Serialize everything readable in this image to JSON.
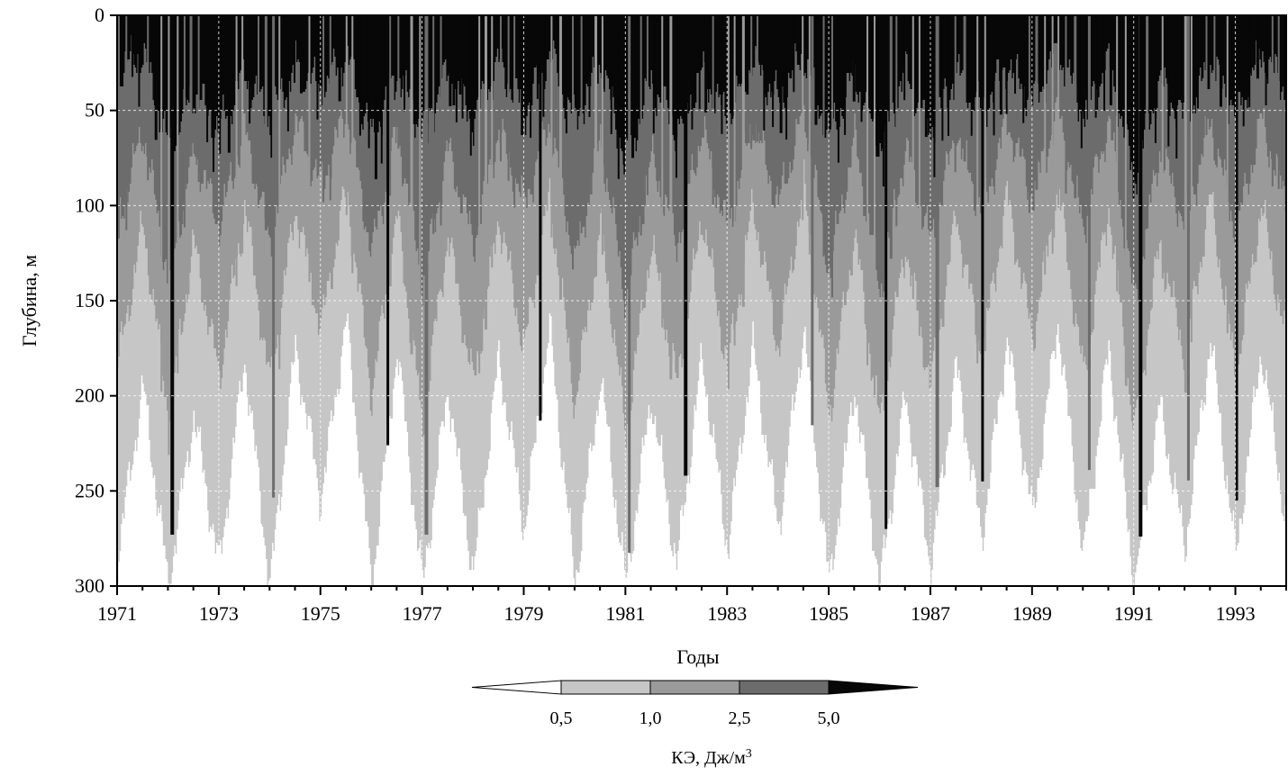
{
  "chart_data": {
    "type": "heatmap",
    "title": "",
    "xlabel": "Годы",
    "ylabel": "Глубина, м",
    "xlim": [
      1971,
      1994
    ],
    "ylim": [
      300,
      0
    ],
    "x_ticks": [
      1971,
      1973,
      1975,
      1977,
      1979,
      1981,
      1983,
      1985,
      1987,
      1989,
      1991,
      1993
    ],
    "y_ticks": [
      0,
      50,
      100,
      150,
      200,
      250,
      300
    ],
    "y_tick_labels": [
      "0",
      "50",
      "100",
      "150",
      "200",
      "250",
      "300"
    ],
    "grid": true,
    "colorbar": {
      "title_main": "КЭ, Дж/м",
      "title_sup": "3",
      "levels": [
        0.5,
        1.0,
        2.5,
        5.0
      ],
      "labels": [
        "0,5",
        "1,0",
        "2,5",
        "5,0"
      ],
      "colors": [
        "#ffffff",
        "#c6c6c6",
        "#9a9a9a",
        "#6c6c6c",
        "#070707"
      ],
      "extend": "both",
      "placement": "bottom-center"
    },
    "contour_depths": {
      "x_years": [
        1971.0,
        1971.5,
        1972.0,
        1972.5,
        1973.0,
        1973.5,
        1974.0,
        1974.5,
        1975.0,
        1975.5,
        1976.0,
        1976.5,
        1977.0,
        1977.5,
        1978.0,
        1978.5,
        1979.0,
        1979.5,
        1980.0,
        1980.5,
        1981.0,
        1981.5,
        1982.0,
        1982.5,
        1983.0,
        1983.5,
        1984.0,
        1984.5,
        1985.0,
        1985.5,
        1986.0,
        1986.5,
        1987.0,
        1987.5,
        1988.0,
        1988.5,
        1989.0,
        1989.5,
        1990.0,
        1990.5,
        1991.0,
        1991.5,
        1992.0,
        1992.5,
        1993.0,
        1993.5,
        1994.0
      ],
      "depth_5_0": [
        30,
        20,
        70,
        40,
        60,
        30,
        55,
        25,
        40,
        20,
        65,
        30,
        60,
        30,
        55,
        25,
        50,
        20,
        55,
        25,
        75,
        35,
        60,
        30,
        55,
        25,
        45,
        20,
        65,
        30,
        70,
        30,
        60,
        30,
        50,
        25,
        45,
        20,
        50,
        25,
        85,
        35,
        55,
        25,
        50,
        20,
        40
      ],
      "depth_2_5": [
        110,
        60,
        140,
        70,
        110,
        60,
        120,
        55,
        90,
        50,
        125,
        60,
        140,
        70,
        120,
        60,
        100,
        55,
        130,
        65,
        150,
        75,
        120,
        60,
        115,
        55,
        100,
        50,
        135,
        65,
        145,
        70,
        120,
        60,
        105,
        55,
        95,
        50,
        110,
        55,
        150,
        70,
        110,
        55,
        115,
        55,
        100
      ],
      "depth_1_0": [
        185,
        110,
        210,
        120,
        190,
        100,
        195,
        100,
        165,
        90,
        200,
        105,
        215,
        115,
        195,
        105,
        175,
        95,
        205,
        110,
        220,
        120,
        195,
        105,
        185,
        100,
        175,
        90,
        210,
        115,
        215,
        120,
        195,
        105,
        180,
        95,
        170,
        90,
        190,
        100,
        220,
        120,
        180,
        95,
        190,
        100,
        175
      ],
      "depth_0_5": [
        285,
        195,
        300,
        210,
        290,
        180,
        300,
        175,
        255,
        160,
        300,
        175,
        300,
        195,
        295,
        180,
        270,
        165,
        300,
        190,
        300,
        200,
        290,
        180,
        280,
        175,
        270,
        165,
        300,
        195,
        300,
        200,
        290,
        185,
        275,
        170,
        265,
        160,
        285,
        175,
        300,
        205,
        280,
        170,
        285,
        175,
        270
      ]
    }
  }
}
